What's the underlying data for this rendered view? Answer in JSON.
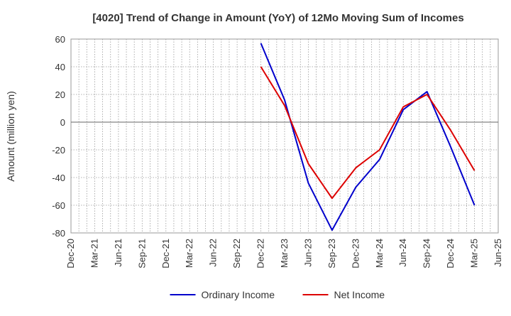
{
  "chart_data": {
    "type": "line",
    "title": "[4020]  Trend of Change in Amount (YoY) of 12Mo Moving Sum of Incomes",
    "xlabel": "",
    "ylabel": "Amount (million yen)",
    "ylim": [
      -80,
      60
    ],
    "yticks": [
      60,
      40,
      20,
      0,
      -20,
      -40,
      -60,
      -80
    ],
    "categories": [
      "Dec-20",
      "Mar-21",
      "Jun-21",
      "Sep-21",
      "Dec-21",
      "Mar-22",
      "Jun-22",
      "Sep-22",
      "Dec-22",
      "Mar-23",
      "Jun-23",
      "Sep-23",
      "Dec-23",
      "Mar-24",
      "Jun-24",
      "Sep-24",
      "Dec-24",
      "Mar-25",
      "Jun-25"
    ],
    "grid": true,
    "legend_position": "bottom-center",
    "series": [
      {
        "name": "Ordinary Income",
        "color": "#0000cc",
        "values": [
          null,
          null,
          null,
          null,
          null,
          null,
          null,
          null,
          57,
          16,
          -44,
          -78,
          -47,
          -27,
          9,
          22,
          -18,
          -60,
          null
        ]
      },
      {
        "name": "Net Income",
        "color": "#dd0000",
        "values": [
          null,
          null,
          null,
          null,
          null,
          null,
          null,
          null,
          40,
          12,
          -30,
          -55,
          -33,
          -20,
          11,
          20,
          -6,
          -35,
          null
        ]
      }
    ]
  }
}
